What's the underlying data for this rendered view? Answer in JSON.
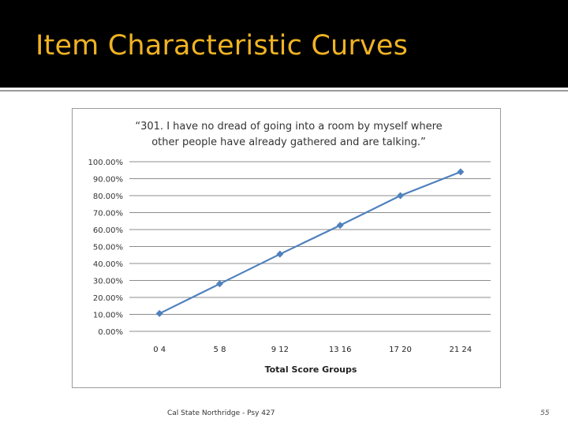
{
  "slide": {
    "title": "Item Characteristic Curves",
    "footer": "Cal State Northridge - Psy 427",
    "page_number": "55"
  },
  "colors": {
    "title_bar": "#000000",
    "title_text": "#f0b323",
    "series_line": "#4f81bd",
    "grid": "#8c8c8c"
  },
  "chart_data": {
    "type": "line",
    "title_lines": [
      "“301. I have no dread of going into a room by myself where",
      "other people have already gathered and are talking.”"
    ],
    "xlabel": "Total Score Groups",
    "ylabel": "",
    "categories": [
      "0 4",
      "5 8",
      "9 12",
      "13 16",
      "17 20",
      "21 24"
    ],
    "y_tick_labels": [
      "0.00%",
      "10.00%",
      "20.00%",
      "30.00%",
      "40.00%",
      "50.00%",
      "60.00%",
      "70.00%",
      "80.00%",
      "90.00%",
      "100.00%"
    ],
    "ylim": [
      0,
      100
    ],
    "grid": true,
    "legend": "none",
    "marker": "diamond",
    "series": [
      {
        "values": [
          10.5,
          28,
          45.5,
          62.5,
          80,
          94
        ]
      }
    ]
  }
}
